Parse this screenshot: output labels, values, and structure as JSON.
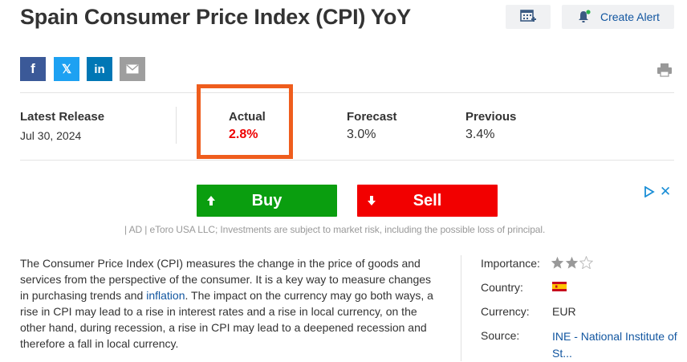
{
  "page_title": "Spain Consumer Price Index (CPI) YoY",
  "header": {
    "calendar_icon": "add-to-calendar-icon",
    "alert_label": "Create Alert",
    "alert_icon": "bell-icon"
  },
  "share": {
    "facebook": "f",
    "x": "𝕏",
    "linkedin": "in",
    "email_icon": "envelope-icon"
  },
  "release": {
    "latest_release_label": "Latest Release",
    "latest_release_date": "Jul 30, 2024",
    "actual_label": "Actual",
    "actual_value": "2.8%",
    "forecast_label": "Forecast",
    "forecast_value": "3.0%",
    "previous_label": "Previous",
    "previous_value": "3.4%"
  },
  "ad": {
    "buy_label": "Buy",
    "sell_label": "Sell",
    "close_label": "✕",
    "disclaimer": "| AD | eToro USA LLC; Investments are subject to market risk, including the possible loss of principal.",
    "colors": {
      "buy": "#0a9e0f",
      "sell": "#f20000"
    }
  },
  "description": {
    "text_before": "The Consumer Price Index (CPI) measures the change in the price of goods and services from the perspective of the consumer. It is a key way to measure changes in purchasing trends and ",
    "link": "inflation",
    "text_after": ". The impact on the currency may go both ways, a rise in CPI may lead to a rise in interest rates and a rise in local currency, on the other hand, during recession, a rise in CPI may lead to a deepened recession and therefore a fall in local currency."
  },
  "meta": {
    "importance_label": "Importance:",
    "importance_stars": 2,
    "importance_max": 3,
    "country_label": "Country:",
    "country_flag": "spain-flag",
    "currency_label": "Currency:",
    "currency_value": "EUR",
    "source_label": "Source:",
    "source_value": "INE - National Institute of St..."
  },
  "colors": {
    "accent_link": "#1256a0",
    "actual_highlight": "#ef5d1d",
    "actual_value": "#e00000"
  }
}
